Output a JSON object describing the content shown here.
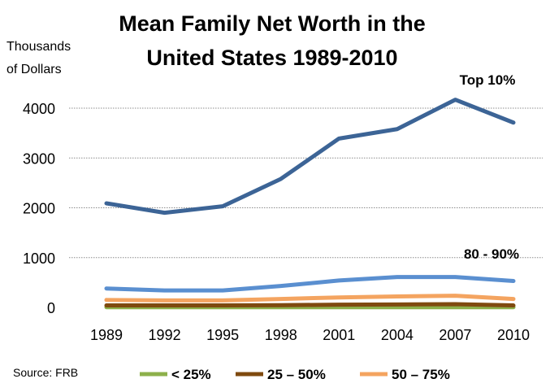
{
  "chart_data": {
    "type": "line",
    "title_lines": [
      "Mean Family Net Worth in the",
      "United States 1989-2010"
    ],
    "ylabel_lines": [
      "Thousands",
      "of Dollars"
    ],
    "xlabel": "",
    "categories": [
      "1989",
      "1992",
      "1995",
      "1998",
      "2001",
      "2004",
      "2007",
      "2010"
    ],
    "ylim": [
      0,
      4000
    ],
    "yticks": [
      0,
      1000,
      2000,
      3000,
      4000
    ],
    "grid": true,
    "series": [
      {
        "name": "< 25%",
        "color": "#8DB04B",
        "values": [
          5,
          5,
          5,
          5,
          5,
          5,
          5,
          5
        ]
      },
      {
        "name": "25 – 50%",
        "color": "#7F4A0F",
        "values": [
          40,
          40,
          40,
          45,
          55,
          60,
          65,
          40
        ]
      },
      {
        "name": "50 – 75%",
        "color": "#F4A460",
        "values": [
          150,
          140,
          140,
          170,
          200,
          220,
          235,
          170
        ]
      },
      {
        "name": "80 - 90%",
        "color": "#5A8FD0",
        "values": [
          380,
          340,
          340,
          430,
          540,
          610,
          610,
          530
        ]
      },
      {
        "name": "Top 10%",
        "color": "#3C6496",
        "values": [
          2090,
          1900,
          2030,
          2580,
          3390,
          3580,
          4170,
          3710
        ]
      }
    ],
    "direct_labels": [
      "Top 10%",
      "80 - 90%"
    ],
    "legend": {
      "placement": "bottom",
      "entries": [
        "< 25%",
        "25 – 50%",
        "50 – 75%"
      ]
    },
    "source": "Source: FRB"
  }
}
